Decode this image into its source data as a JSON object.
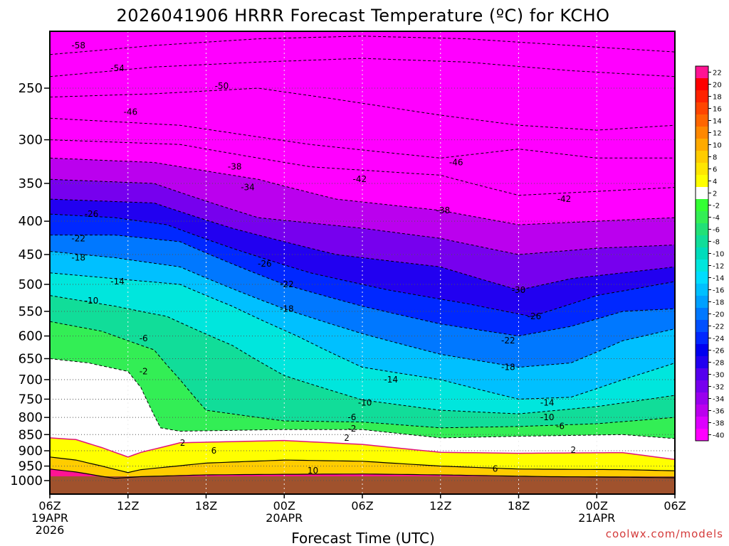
{
  "chart_data": {
    "type": "heatmap",
    "title": "2026041906 HRRR Forecast Temperature (ºC) for KCHO",
    "xlabel": "Forecast Time (UTC)",
    "ylabel": "",
    "y_scale": "log",
    "y_reversed": true,
    "ylim": [
      1000,
      200
    ],
    "y_ticks": [
      250,
      300,
      350,
      400,
      450,
      500,
      550,
      600,
      650,
      700,
      750,
      800,
      850,
      900,
      950,
      1000
    ],
    "x_hours": [
      0,
      6,
      12,
      18,
      24,
      30,
      36,
      42,
      48
    ],
    "x_tick_labels": [
      {
        "lines": [
          "06Z",
          "19APR",
          "2026"
        ]
      },
      {
        "lines": [
          "12Z"
        ]
      },
      {
        "lines": [
          "18Z"
        ]
      },
      {
        "lines": [
          "00Z",
          "20APR"
        ]
      },
      {
        "lines": [
          "06Z"
        ]
      },
      {
        "lines": [
          "12Z"
        ]
      },
      {
        "lines": [
          "18Z"
        ]
      },
      {
        "lines": [
          "00Z",
          "21APR"
        ]
      },
      {
        "lines": [
          "06Z"
        ]
      }
    ],
    "grid": true,
    "colorbar": {
      "labels": [
        22,
        20,
        18,
        16,
        14,
        12,
        10,
        8,
        6,
        4,
        2,
        -2,
        -4,
        -6,
        -8,
        -10,
        -12,
        -14,
        -16,
        -18,
        -20,
        -22,
        -24,
        -26,
        -28,
        -30,
        -32,
        -34,
        -36,
        -38,
        -40
      ],
      "colors": [
        "#ff1493",
        "#ff0000",
        "#ff2200",
        "#ff4500",
        "#ff6600",
        "#ff8800",
        "#ffaa00",
        "#ffcc00",
        "#ffe600",
        "#ffff00",
        "#ffffff",
        "#33ff33",
        "#33ee55",
        "#22e077",
        "#11dd99",
        "#00dcbb",
        "#00e6dd",
        "#00ddff",
        "#00c0ff",
        "#00a0ff",
        "#0078ff",
        "#0050ff",
        "#0028ff",
        "#0000f0",
        "#2200f0",
        "#5500ee",
        "#7700ee",
        "#9900ee",
        "#bb00ee",
        "#dd00ff",
        "#ff00ff"
      ]
    },
    "isotherms": [
      {
        "value": 10,
        "points": [
          [
            0,
            960
          ],
          [
            2,
            970
          ],
          [
            4,
            985
          ],
          [
            5,
            992
          ],
          [
            7,
            986
          ],
          [
            12,
            980
          ],
          [
            18,
            978
          ],
          [
            24,
            977
          ],
          [
            30,
            980
          ],
          [
            38,
            986
          ],
          [
            44,
            988
          ],
          [
            48,
            990
          ]
        ]
      },
      {
        "value": 6,
        "points": [
          [
            0,
            920
          ],
          [
            2,
            930
          ],
          [
            4,
            950
          ],
          [
            6,
            972
          ],
          [
            7,
            962
          ],
          [
            12,
            940
          ],
          [
            18,
            930
          ],
          [
            24,
            934
          ],
          [
            30,
            950
          ],
          [
            36,
            960
          ],
          [
            44,
            962
          ],
          [
            48,
            966
          ]
        ]
      },
      {
        "value": 2,
        "points": [
          [
            0,
            860
          ],
          [
            2,
            865
          ],
          [
            4,
            890
          ],
          [
            6,
            920
          ],
          [
            7,
            905
          ],
          [
            10,
            875
          ],
          [
            18,
            868
          ],
          [
            24,
            880
          ],
          [
            30,
            905
          ],
          [
            36,
            908
          ],
          [
            44,
            906
          ],
          [
            48,
            928
          ]
        ]
      },
      {
        "value": -2,
        "points": [
          [
            0,
            650
          ],
          [
            3,
            660
          ],
          [
            6,
            680
          ],
          [
            7,
            720
          ],
          [
            8.5,
            830
          ],
          [
            10,
            840
          ],
          [
            18,
            835
          ],
          [
            24,
            835
          ],
          [
            30,
            860
          ],
          [
            36,
            855
          ],
          [
            44,
            850
          ],
          [
            48,
            862
          ]
        ]
      },
      {
        "value": -6,
        "points": [
          [
            0,
            570
          ],
          [
            4,
            590
          ],
          [
            8,
            630
          ],
          [
            10,
            700
          ],
          [
            12,
            780
          ],
          [
            18,
            810
          ],
          [
            24,
            813
          ],
          [
            30,
            830
          ],
          [
            36,
            826
          ],
          [
            42,
            818
          ],
          [
            48,
            800
          ]
        ]
      },
      {
        "value": -10,
        "points": [
          [
            0,
            520
          ],
          [
            5,
            540
          ],
          [
            9,
            560
          ],
          [
            14,
            620
          ],
          [
            18,
            690
          ],
          [
            24,
            752
          ],
          [
            30,
            780
          ],
          [
            36,
            790
          ],
          [
            42,
            770
          ],
          [
            48,
            740
          ]
        ]
      },
      {
        "value": -14,
        "points": [
          [
            0,
            480
          ],
          [
            5,
            490
          ],
          [
            10,
            500
          ],
          [
            14,
            540
          ],
          [
            19,
            600
          ],
          [
            24,
            670
          ],
          [
            30,
            700
          ],
          [
            36,
            750
          ],
          [
            40,
            745
          ],
          [
            44,
            700
          ],
          [
            48,
            660
          ]
        ]
      },
      {
        "value": -18,
        "points": [
          [
            0,
            445
          ],
          [
            5,
            455
          ],
          [
            10,
            470
          ],
          [
            18,
            545
          ],
          [
            24,
            595
          ],
          [
            30,
            640
          ],
          [
            36,
            670
          ],
          [
            40,
            660
          ],
          [
            44,
            610
          ],
          [
            48,
            585
          ]
        ]
      },
      {
        "value": -22,
        "points": [
          [
            0,
            420
          ],
          [
            5,
            420
          ],
          [
            10,
            430
          ],
          [
            18,
            500
          ],
          [
            24,
            540
          ],
          [
            30,
            575
          ],
          [
            36,
            600
          ],
          [
            40,
            580
          ],
          [
            44,
            550
          ],
          [
            48,
            545
          ]
        ]
      },
      {
        "value": -26,
        "points": [
          [
            0,
            390
          ],
          [
            5,
            395
          ],
          [
            9,
            405
          ],
          [
            14,
            440
          ],
          [
            20,
            480
          ],
          [
            26,
            510
          ],
          [
            32,
            535
          ],
          [
            37,
            560
          ],
          [
            42,
            520
          ],
          [
            48,
            495
          ]
        ]
      },
      {
        "value": -30,
        "points": [
          [
            0,
            370
          ],
          [
            8,
            375
          ],
          [
            14,
            410
          ],
          [
            22,
            450
          ],
          [
            30,
            470
          ],
          [
            36,
            510
          ],
          [
            40,
            490
          ],
          [
            48,
            470
          ]
        ]
      },
      {
        "value": -34,
        "points": [
          [
            0,
            345
          ],
          [
            8,
            350
          ],
          [
            16,
            395
          ],
          [
            24,
            410
          ],
          [
            30,
            425
          ],
          [
            36,
            450
          ],
          [
            42,
            440
          ],
          [
            48,
            435
          ]
        ]
      },
      {
        "value": -38,
        "points": [
          [
            0,
            320
          ],
          [
            8,
            325
          ],
          [
            16,
            345
          ],
          [
            22,
            370
          ],
          [
            30,
            385
          ],
          [
            36,
            405
          ],
          [
            42,
            400
          ],
          [
            48,
            395
          ]
        ]
      },
      {
        "value": -42,
        "points": [
          [
            0,
            300
          ],
          [
            10,
            305
          ],
          [
            20,
            330
          ],
          [
            30,
            340
          ],
          [
            36,
            365
          ],
          [
            42,
            360
          ],
          [
            48,
            355
          ]
        ]
      },
      {
        "value": -46,
        "points": [
          [
            0,
            278
          ],
          [
            10,
            285
          ],
          [
            20,
            305
          ],
          [
            30,
            320
          ],
          [
            36,
            310
          ],
          [
            42,
            320
          ],
          [
            48,
            320
          ]
        ]
      },
      {
        "value": -50,
        "points": [
          [
            0,
            258
          ],
          [
            8,
            255
          ],
          [
            16,
            250
          ],
          [
            22,
            260
          ],
          [
            30,
            275
          ],
          [
            36,
            285
          ],
          [
            42,
            290
          ],
          [
            48,
            285
          ]
        ]
      },
      {
        "value": -54,
        "points": [
          [
            0,
            240
          ],
          [
            8,
            232
          ],
          [
            16,
            228
          ],
          [
            24,
            225
          ],
          [
            32,
            228
          ],
          [
            40,
            235
          ],
          [
            48,
            240
          ]
        ]
      },
      {
        "value": -58,
        "points": [
          [
            0,
            222
          ],
          [
            8,
            215
          ],
          [
            16,
            210
          ],
          [
            24,
            208
          ],
          [
            32,
            210
          ],
          [
            40,
            215
          ],
          [
            48,
            220
          ]
        ]
      }
    ],
    "contour_labels": [
      {
        "text": "-58",
        "x": 2.2,
        "p": 215
      },
      {
        "text": "-54",
        "x": 5.2,
        "p": 233
      },
      {
        "text": "-50",
        "x": 13.2,
        "p": 248
      },
      {
        "text": "-46",
        "x": 6.2,
        "p": 272
      },
      {
        "text": "-46",
        "x": 31.2,
        "p": 325
      },
      {
        "text": "-42",
        "x": 23.8,
        "p": 345
      },
      {
        "text": "-42",
        "x": 39.5,
        "p": 370
      },
      {
        "text": "-38",
        "x": 14.2,
        "p": 330
      },
      {
        "text": "-38",
        "x": 30.2,
        "p": 385
      },
      {
        "text": "-34",
        "x": 15.2,
        "p": 355
      },
      {
        "text": "-30",
        "x": 36,
        "p": 510
      },
      {
        "text": "-26",
        "x": 3.2,
        "p": 390
      },
      {
        "text": "-26",
        "x": 16.5,
        "p": 465
      },
      {
        "text": "-26",
        "x": 37.2,
        "p": 560
      },
      {
        "text": "-22",
        "x": 2.2,
        "p": 425
      },
      {
        "text": "-22",
        "x": 18.2,
        "p": 500
      },
      {
        "text": "-22",
        "x": 35.2,
        "p": 610
      },
      {
        "text": "-18",
        "x": 2.2,
        "p": 455
      },
      {
        "text": "-18",
        "x": 18.2,
        "p": 545
      },
      {
        "text": "-18",
        "x": 35.2,
        "p": 670
      },
      {
        "text": "-14",
        "x": 5.2,
        "p": 495
      },
      {
        "text": "-14",
        "x": 26.2,
        "p": 700
      },
      {
        "text": "-14",
        "x": 38.2,
        "p": 760
      },
      {
        "text": "-10",
        "x": 3.2,
        "p": 530
      },
      {
        "text": "-10",
        "x": 24.2,
        "p": 760
      },
      {
        "text": "-10",
        "x": 38.2,
        "p": 800
      },
      {
        "text": "-6",
        "x": 7.2,
        "p": 605
      },
      {
        "text": "-6",
        "x": 23.2,
        "p": 800
      },
      {
        "text": "-6",
        "x": 39.2,
        "p": 825
      },
      {
        "text": "-2",
        "x": 7.2,
        "p": 680
      },
      {
        "text": "-2",
        "x": 23.2,
        "p": 832
      },
      {
        "text": "2",
        "x": 10.2,
        "p": 875
      },
      {
        "text": "2",
        "x": 22.8,
        "p": 860
      },
      {
        "text": "2",
        "x": 40.2,
        "p": 898
      },
      {
        "text": "6",
        "x": 12.6,
        "p": 900
      },
      {
        "text": "6",
        "x": 34.2,
        "p": 960
      },
      {
        "text": "10",
        "x": 20.2,
        "p": 965
      }
    ],
    "ground_color": "#a0522d",
    "ground_top_p": 985
  },
  "credit": "coolwx.com/models"
}
